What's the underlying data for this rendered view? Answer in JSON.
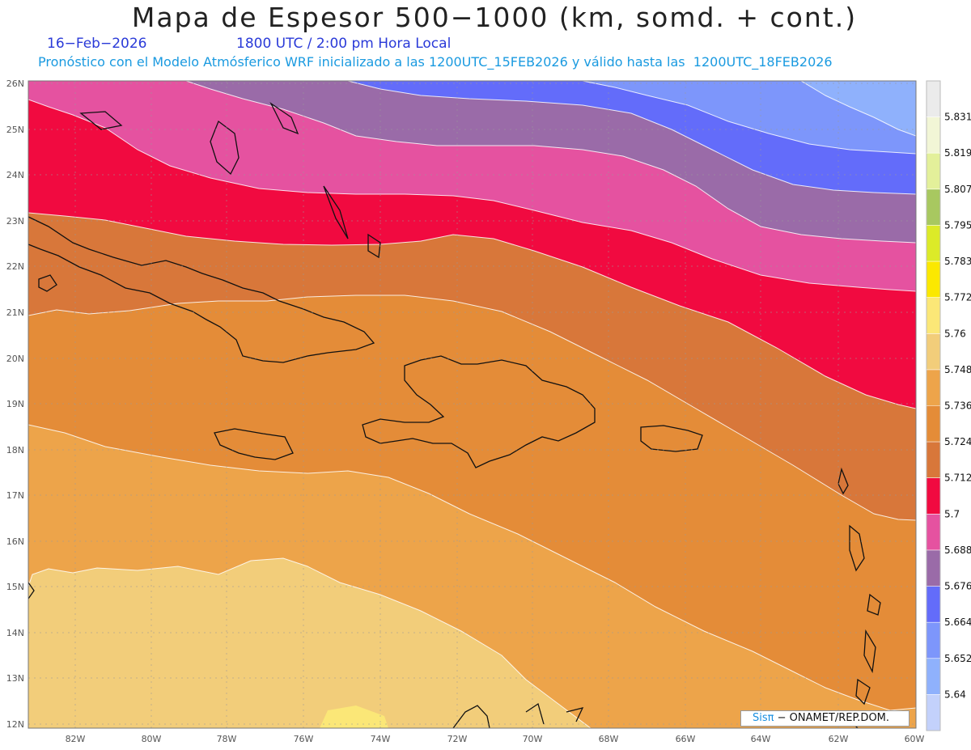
{
  "header": {
    "title": "Mapa de Espesor 500−1000 (km, somd. + cont.)",
    "date": "16−Feb−2026",
    "time": "1800 UTC / 2:00 pm Hora Local",
    "model_info": "Pronóstico con el Modelo Atmósferico WRF inicializado a las 1200UTC_15FEB2026 y válido hasta las  1200UTC_18FEB2026"
  },
  "axes": {
    "lat_labels": [
      "26N",
      "25N",
      "24N",
      "23N",
      "22N",
      "21N",
      "20N",
      "19N",
      "18N",
      "17N",
      "16N",
      "15N",
      "14N",
      "13N",
      "12N"
    ],
    "lon_labels": [
      "82W",
      "80W",
      "78W",
      "76W",
      "74W",
      "72W",
      "70W",
      "68W",
      "66W",
      "64W",
      "62W",
      "60W"
    ]
  },
  "colorbar": {
    "colors": [
      "#ebebeb",
      "#f2f6d6",
      "#e3f09a",
      "#a8c860",
      "#dcea28",
      "#fbe800",
      "#fbe777",
      "#f2cd7a",
      "#eda44a",
      "#e48c38",
      "#d8773a",
      "#f10a40",
      "#e552a0",
      "#9a6ba8",
      "#636cfa",
      "#7d96fb",
      "#8fb1fc",
      "#c3d1fb"
    ],
    "labels": [
      "5.831",
      "5.819",
      "5.807",
      "5.795",
      "5.783",
      "5.772",
      "5.76",
      "5.748",
      "5.736",
      "5.724",
      "5.712",
      "5.7",
      "5.688",
      "5.676",
      "5.664",
      "5.652",
      "5.64"
    ]
  },
  "credit": {
    "sis": "Sisπ",
    "rest": "− ONAMET/REP.DOM."
  }
}
